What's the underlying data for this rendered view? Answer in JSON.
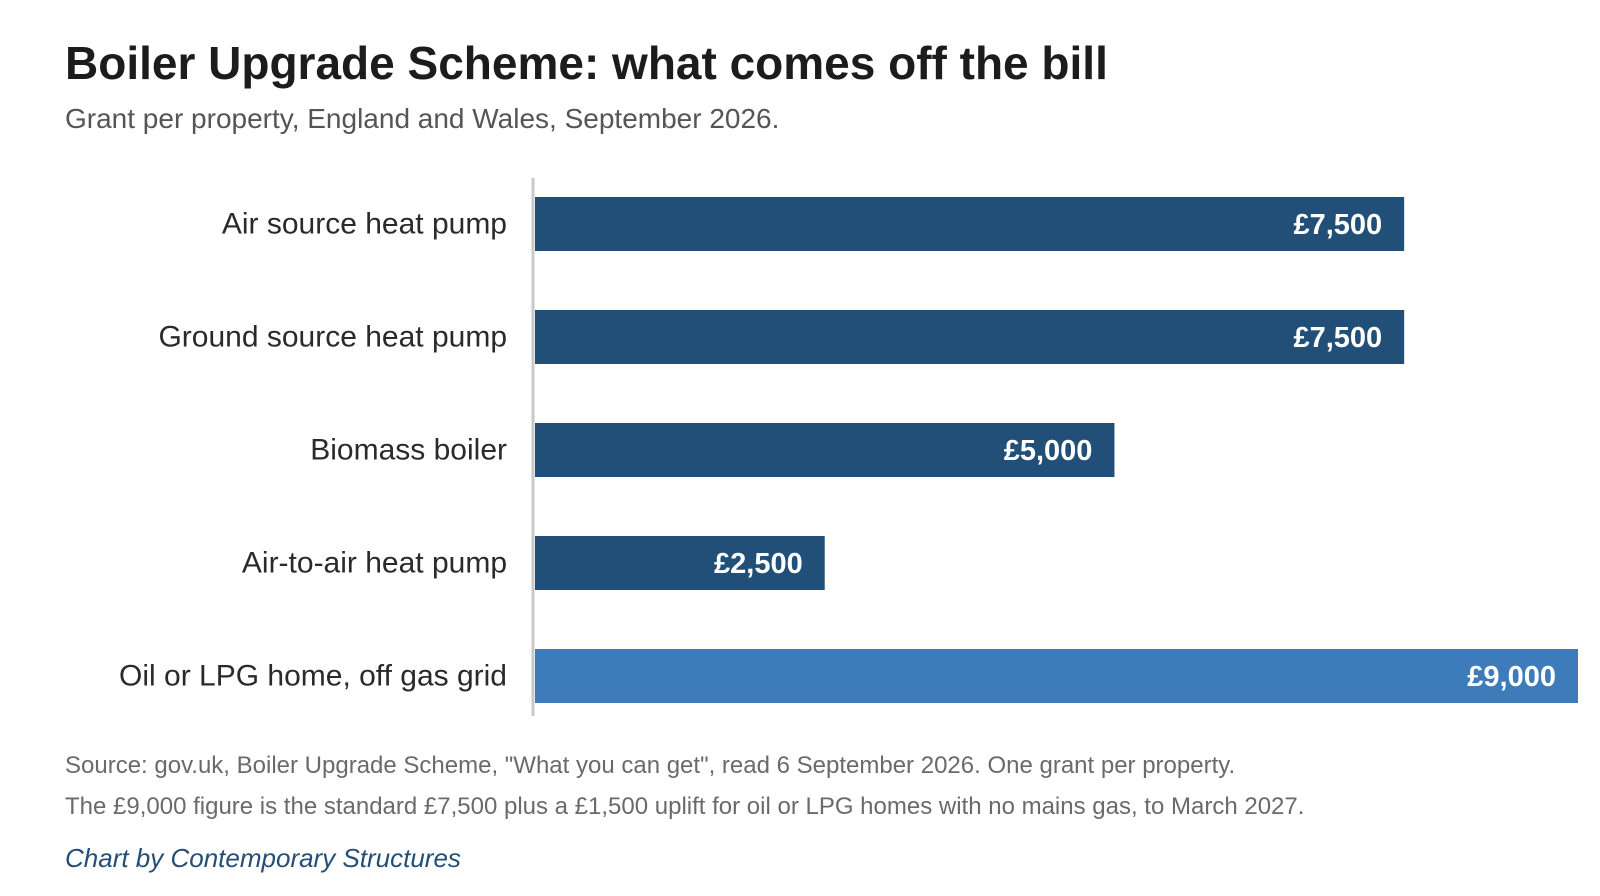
{
  "chart_data": {
    "type": "bar",
    "orientation": "horizontal",
    "title": "Boiler Upgrade Scheme: what comes off the bill",
    "subtitle": "Grant per property, England and Wales, September 2026.",
    "categories": [
      "Air source heat pump",
      "Ground source heat pump",
      "Biomass boiler",
      "Air-to-air heat pump",
      "Oil or LPG home, off gas grid"
    ],
    "values": [
      7500,
      7500,
      5000,
      2500,
      9000
    ],
    "value_labels": [
      "£7,500",
      "£7,500",
      "£5,000",
      "£2,500",
      "£9,000"
    ],
    "colors": [
      "#214f78",
      "#214f78",
      "#214f78",
      "#214f78",
      "#3e7bba"
    ],
    "xlim": [
      0,
      9000
    ],
    "grid": false,
    "legend": "none"
  },
  "footer": {
    "source_line1": "Source: gov.uk, Boiler Upgrade Scheme, \"What you can get\", read 6 September 2026. One grant per property.",
    "source_line2": "The £9,000 figure is the standard £7,500 plus a £1,500 uplift for oil or LPG homes with no mains gas, to March 2027.",
    "credit": "Chart by Contemporary Structures"
  }
}
